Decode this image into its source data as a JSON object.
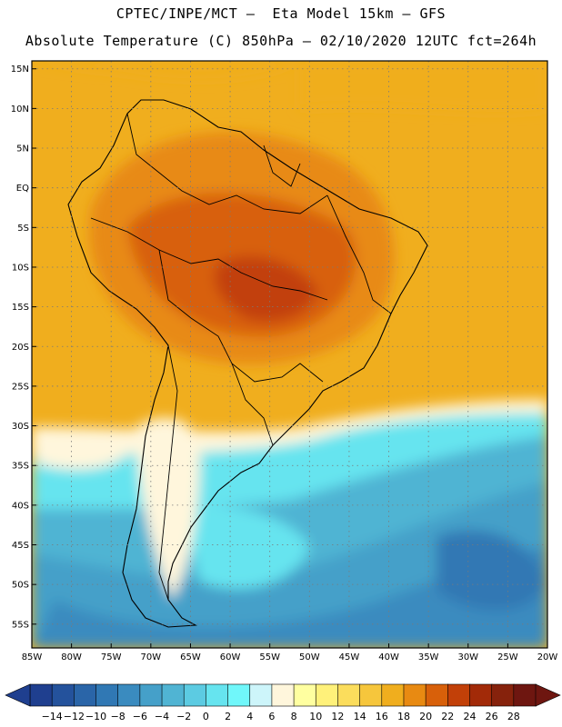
{
  "header": {
    "title_line1": "CPTEC/INPE/MCT –  Eta Model 15km – GFS",
    "title_line2": "Absolute Temperature (C) 850hPa – 02/10/2020 12UTC fct=264h"
  },
  "map": {
    "lat_labels": [
      "15N",
      "10N",
      "5N",
      "EQ",
      "5S",
      "10S",
      "15S",
      "20S",
      "25S",
      "30S",
      "35S",
      "40S",
      "45S",
      "50S",
      "55S"
    ],
    "lat_values": [
      15,
      10,
      5,
      0,
      -5,
      -10,
      -15,
      -20,
      -25,
      -30,
      -35,
      -40,
      -45,
      -50,
      -55
    ],
    "lon_labels": [
      "85W",
      "80W",
      "75W",
      "70W",
      "65W",
      "60W",
      "55W",
      "50W",
      "45W",
      "40W",
      "35W",
      "30W",
      "25W",
      "20W"
    ],
    "lon_values": [
      -85,
      -80,
      -75,
      -70,
      -65,
      -60,
      -55,
      -50,
      -45,
      -40,
      -35,
      -30,
      -25,
      -20
    ],
    "extent": {
      "lon_min": -85,
      "lon_max": -20,
      "lat_min": -58,
      "lat_max": 16
    },
    "gridlines": "dotted"
  },
  "colorbar": {
    "labels": [
      "-14",
      "-12",
      "-10",
      "-8",
      "-6",
      "-4",
      "-2",
      "0",
      "2",
      "4",
      "6",
      "8",
      "10",
      "12",
      "14",
      "16",
      "18",
      "20",
      "22",
      "24",
      "26",
      "28"
    ],
    "colors": [
      "#1f3f8f",
      "#24529c",
      "#2a65a8",
      "#3078b4",
      "#3a8bbf",
      "#45a0c9",
      "#50b4d3",
      "#5ccbe2",
      "#66e4ef",
      "#70f7fa",
      "#cdf5fa",
      "#fff6dc",
      "#ffffa0",
      "#fff17a",
      "#fbdd5c",
      "#f6c63c",
      "#f0ae1e",
      "#e88a12",
      "#d8600a",
      "#c24008",
      "#a22a08",
      "#86220c",
      "#6e1610"
    ]
  }
}
